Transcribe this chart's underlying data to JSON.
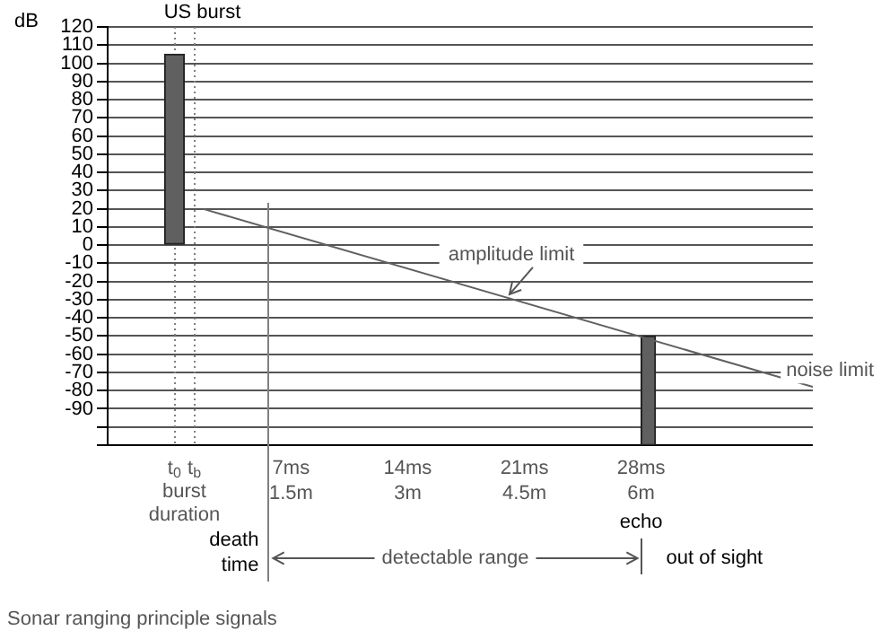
{
  "chart_data": {
    "type": "bar",
    "ylabel": "dB",
    "xlim": [
      -4,
      38.3
    ],
    "ylim": [
      -110,
      120
    ],
    "xticks": [
      {
        "value": 0,
        "label": "t$_{0}$"
      },
      {
        "value": 1.2,
        "label": "t$_{b}$"
      },
      {
        "value": 7,
        "label": "7ms"
      },
      {
        "value": 14,
        "label": "14ms"
      },
      {
        "value": 21,
        "label": "21ms"
      },
      {
        "value": 28,
        "label": "28ms"
      }
    ],
    "x2lim": [
      -0.857,
      8.207
    ],
    "x2ticks": [
      {
        "value": 1.5,
        "label": "1.5m"
      },
      {
        "value": 3,
        "label": "3m"
      },
      {
        "value": 4.5,
        "label": "4.5m"
      },
      {
        "value": 6,
        "label": "6m"
      }
    ],
    "yticks": [
      120,
      110,
      100,
      90,
      80,
      70,
      60,
      50,
      40,
      30,
      20,
      10,
      0,
      -10,
      -20,
      -30,
      -40,
      -50,
      -60,
      -70,
      -80,
      -90,
      {
        "value": -100,
        "label": null
      },
      {
        "value": -110,
        "label": null
      }
    ],
    "grid": "y",
    "legend": false,
    "series": [
      {
        "name": "US burst",
        "type": "bar",
        "color": "#606060",
        "x": [
          0.6
        ],
        "values": [
          105
        ],
        "base": [
          0
        ]
      },
      {
        "name": "amplitude limit",
        "type": "line",
        "color": "#606060",
        "x": [
          1.7,
          38.3
        ],
        "values": [
          20,
          -78
        ]
      },
      {
        "type": "bar",
        "color": "#606060",
        "x": [
          28
        ],
        "values": [
          60
        ],
        "base": [
          -110
        ]
      }
    ],
    "ref_lines": [
      {
        "axis": "x",
        "value": 5.6,
        "label": "death time",
        "color": "#808080"
      },
      {
        "axis": "x",
        "value": 0,
        "color": "#808080",
        "line_style": "dotted"
      },
      {
        "axis": "x",
        "value": 1.2,
        "color": "#808080",
        "line_style": "dotted"
      }
    ],
    "annotations": [
      {
        "text": "noise limit",
        "x": 38.3,
        "y": -78
      },
      "burst duration",
      "detectable range",
      "out of sight",
      "Sonar ranging principle signals",
      "echo"
    ]
  }
}
